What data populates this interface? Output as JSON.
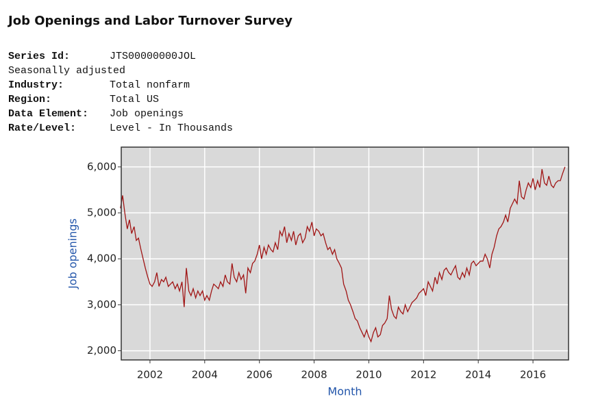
{
  "header": {
    "title": "Job Openings and Labor Turnover Survey",
    "rows": [
      [
        "Series Id:",
        "JTS00000000JOL"
      ],
      [
        "Seasonally adjusted"
      ],
      [
        "Industry:",
        "Total nonfarm"
      ],
      [
        "Region:",
        "Total US"
      ],
      [
        "Data Element:",
        "Job openings"
      ],
      [
        "Rate/Level:",
        "Level - In Thousands"
      ]
    ]
  },
  "chart_data": {
    "type": "line",
    "x_label": "Month",
    "y_label": "Job openings",
    "color": "#a01414",
    "grid": true,
    "xlim": [
      2000.95,
      2017.3
    ],
    "ylim": [
      1800,
      6430
    ],
    "xticks": [
      2002,
      2004,
      2006,
      2008,
      2010,
      2012,
      2014,
      2016
    ],
    "yticks": [
      {
        "value": 2000,
        "label": "2,000"
      },
      {
        "value": 3000,
        "label": "3,000"
      },
      {
        "value": 4000,
        "label": "4,000"
      },
      {
        "value": 5000,
        "label": "5,000"
      },
      {
        "value": 6000,
        "label": "6,000"
      }
    ],
    "x": [
      2000.92,
      2001.0,
      2001.08,
      2001.17,
      2001.25,
      2001.33,
      2001.42,
      2001.5,
      2001.58,
      2001.67,
      2001.75,
      2001.83,
      2001.92,
      2002.0,
      2002.08,
      2002.17,
      2002.25,
      2002.33,
      2002.42,
      2002.5,
      2002.58,
      2002.67,
      2002.75,
      2002.83,
      2002.92,
      2003.0,
      2003.08,
      2003.17,
      2003.25,
      2003.33,
      2003.42,
      2003.5,
      2003.58,
      2003.67,
      2003.75,
      2003.83,
      2003.92,
      2004.0,
      2004.08,
      2004.17,
      2004.25,
      2004.33,
      2004.42,
      2004.5,
      2004.58,
      2004.67,
      2004.75,
      2004.83,
      2004.92,
      2005.0,
      2005.08,
      2005.17,
      2005.25,
      2005.33,
      2005.42,
      2005.5,
      2005.58,
      2005.67,
      2005.75,
      2005.83,
      2005.92,
      2006.0,
      2006.08,
      2006.17,
      2006.25,
      2006.33,
      2006.42,
      2006.5,
      2006.58,
      2006.67,
      2006.75,
      2006.83,
      2006.92,
      2007.0,
      2007.08,
      2007.17,
      2007.25,
      2007.33,
      2007.42,
      2007.5,
      2007.58,
      2007.67,
      2007.75,
      2007.83,
      2007.92,
      2008.0,
      2008.08,
      2008.17,
      2008.25,
      2008.33,
      2008.42,
      2008.5,
      2008.58,
      2008.67,
      2008.75,
      2008.83,
      2008.92,
      2009.0,
      2009.08,
      2009.17,
      2009.25,
      2009.33,
      2009.42,
      2009.5,
      2009.58,
      2009.67,
      2009.75,
      2009.83,
      2009.92,
      2010.0,
      2010.08,
      2010.17,
      2010.25,
      2010.33,
      2010.42,
      2010.5,
      2010.58,
      2010.67,
      2010.75,
      2010.83,
      2010.92,
      2011.0,
      2011.08,
      2011.17,
      2011.25,
      2011.33,
      2011.42,
      2011.5,
      2011.58,
      2011.67,
      2011.75,
      2011.83,
      2011.92,
      2012.0,
      2012.08,
      2012.17,
      2012.25,
      2012.33,
      2012.42,
      2012.5,
      2012.58,
      2012.67,
      2012.75,
      2012.83,
      2012.92,
      2013.0,
      2013.08,
      2013.17,
      2013.25,
      2013.33,
      2013.42,
      2013.5,
      2013.58,
      2013.67,
      2013.75,
      2013.83,
      2013.92,
      2014.0,
      2014.08,
      2014.17,
      2014.25,
      2014.33,
      2014.42,
      2014.5,
      2014.58,
      2014.67,
      2014.75,
      2014.83,
      2014.92,
      2015.0,
      2015.08,
      2015.17,
      2015.25,
      2015.33,
      2015.42,
      2015.5,
      2015.58,
      2015.67,
      2015.75,
      2015.83,
      2015.92,
      2016.0,
      2016.08,
      2016.17,
      2016.25,
      2016.33,
      2016.42,
      2016.5,
      2016.58,
      2016.67,
      2016.75,
      2016.83,
      2016.92,
      2017.0,
      2017.08,
      2017.17
    ],
    "values": [
      5100,
      5380,
      5000,
      4650,
      4850,
      4550,
      4700,
      4400,
      4450,
      4200,
      4000,
      3800,
      3600,
      3450,
      3400,
      3500,
      3700,
      3400,
      3550,
      3500,
      3600,
      3400,
      3450,
      3500,
      3350,
      3450,
      3300,
      3500,
      2950,
      3800,
      3300,
      3200,
      3350,
      3150,
      3300,
      3200,
      3300,
      3100,
      3200,
      3100,
      3300,
      3450,
      3400,
      3350,
      3500,
      3400,
      3650,
      3500,
      3450,
      3900,
      3600,
      3500,
      3700,
      3550,
      3650,
      3250,
      3800,
      3700,
      3900,
      3950,
      4100,
      4300,
      4000,
      4250,
      4100,
      4300,
      4200,
      4150,
      4350,
      4200,
      4600,
      4500,
      4700,
      4350,
      4550,
      4400,
      4600,
      4300,
      4500,
      4550,
      4350,
      4450,
      4700,
      4600,
      4800,
      4500,
      4650,
      4600,
      4500,
      4550,
      4350,
      4200,
      4250,
      4100,
      4200,
      4000,
      3900,
      3800,
      3450,
      3300,
      3100,
      3000,
      2850,
      2700,
      2650,
      2500,
      2400,
      2300,
      2450,
      2300,
      2200,
      2400,
      2500,
      2300,
      2350,
      2550,
      2600,
      2700,
      3200,
      2900,
      2750,
      2700,
      2950,
      2850,
      2800,
      3000,
      2850,
      2950,
      3050,
      3100,
      3150,
      3250,
      3300,
      3350,
      3200,
      3500,
      3400,
      3300,
      3600,
      3450,
      3700,
      3550,
      3750,
      3800,
      3700,
      3650,
      3750,
      3850,
      3600,
      3550,
      3700,
      3600,
      3800,
      3650,
      3900,
      3950,
      3850,
      3900,
      3950,
      3950,
      4100,
      4000,
      3800,
      4100,
      4250,
      4500,
      4650,
      4700,
      4800,
      4950,
      4800,
      5100,
      5200,
      5300,
      5200,
      5700,
      5350,
      5300,
      5500,
      5650,
      5550,
      5750,
      5500,
      5700,
      5550,
      5950,
      5650,
      5600,
      5800,
      5600,
      5550,
      5650,
      5700,
      5700,
      5850,
      6000
    ]
  }
}
